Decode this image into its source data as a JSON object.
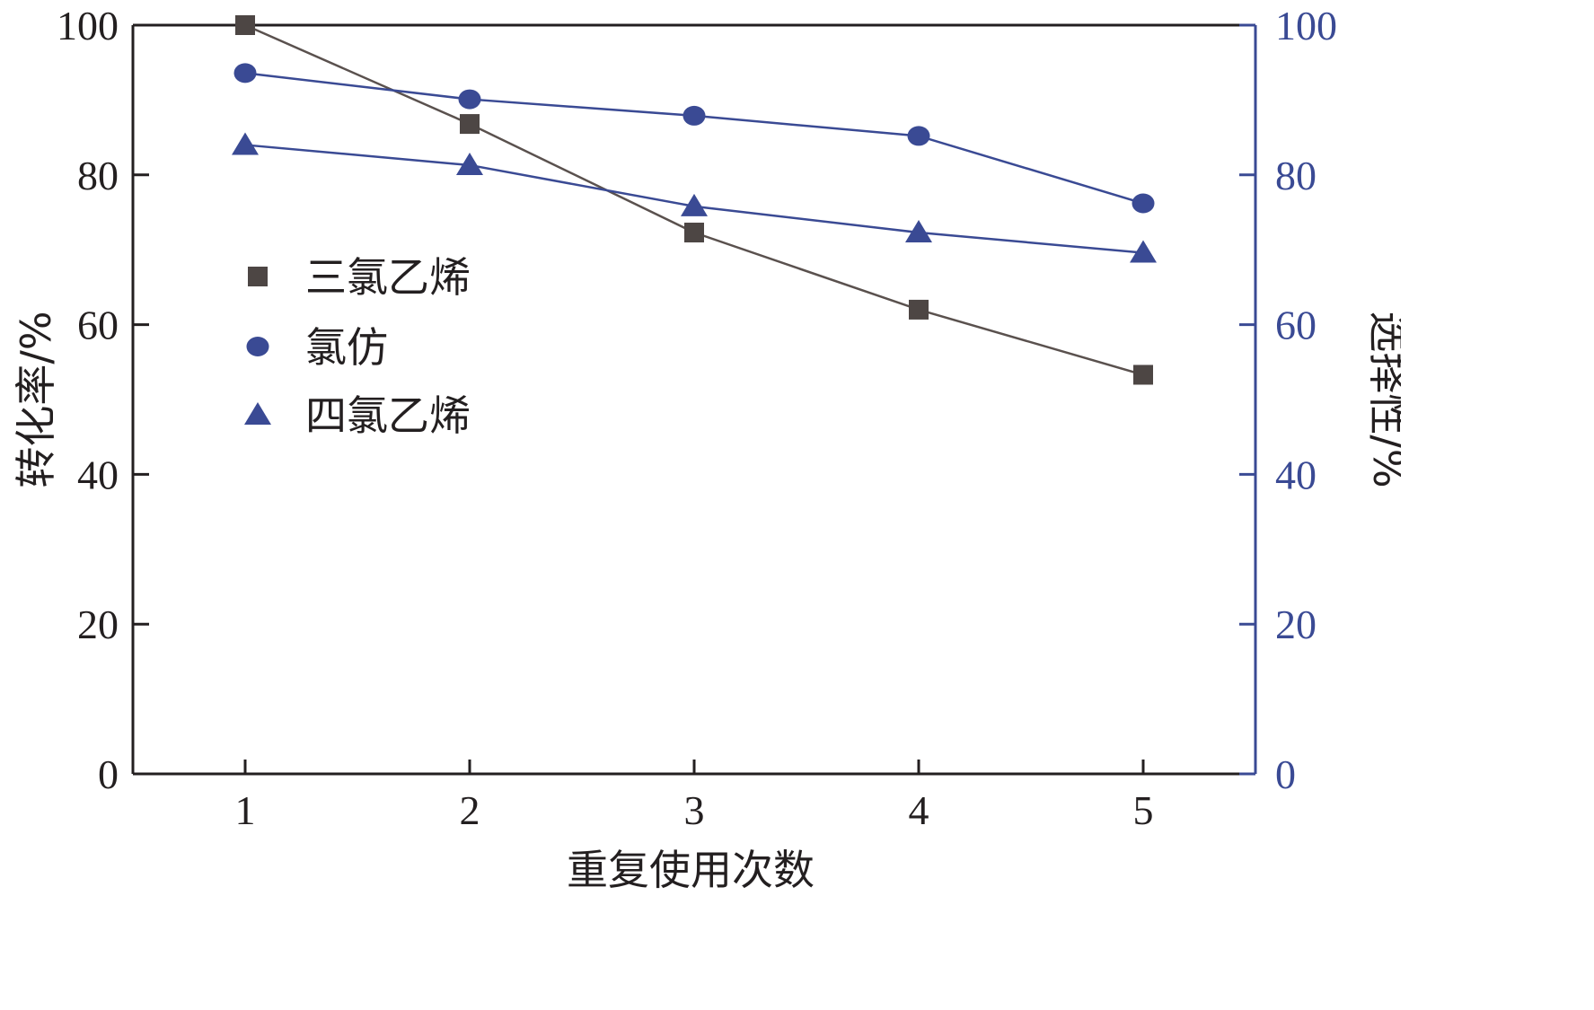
{
  "colors": {
    "left_axis": "#231f20",
    "right_axis": "#3a4a94",
    "tce_line": "#5a514e",
    "tce_marker": "#4d4644",
    "blue_series": "#3a4a94"
  },
  "chart_data": {
    "type": "line",
    "x": [
      1,
      2,
      3,
      4,
      5
    ],
    "xlabel": "重复使用次数",
    "xlim": [
      0.5,
      5.5
    ],
    "xticks": [
      "1",
      "2",
      "3",
      "4",
      "5"
    ],
    "ylabel_left": "转化率/%",
    "ylim_left": [
      0,
      100
    ],
    "yticks_left": [
      "0",
      "20",
      "40",
      "60",
      "80",
      "100"
    ],
    "ylabel_right": "选择性/%",
    "ylim_right": [
      0,
      100
    ],
    "yticks_right": [
      "0",
      "20",
      "40",
      "60",
      "80",
      "100"
    ],
    "grid": false,
    "legend_position": "left-middle",
    "series": [
      {
        "name": "三氯乙烯",
        "axis": "left",
        "marker": "square",
        "values": [
          100,
          86.8,
          72.3,
          62.0,
          53.3
        ]
      },
      {
        "name": "氯仿",
        "axis": "right",
        "marker": "circle",
        "values": [
          93.6,
          90.1,
          87.9,
          85.2,
          76.2
        ]
      },
      {
        "name": "四氯乙烯",
        "axis": "right",
        "marker": "triangle",
        "values": [
          84.0,
          81.3,
          75.8,
          72.3,
          69.6
        ]
      }
    ]
  }
}
